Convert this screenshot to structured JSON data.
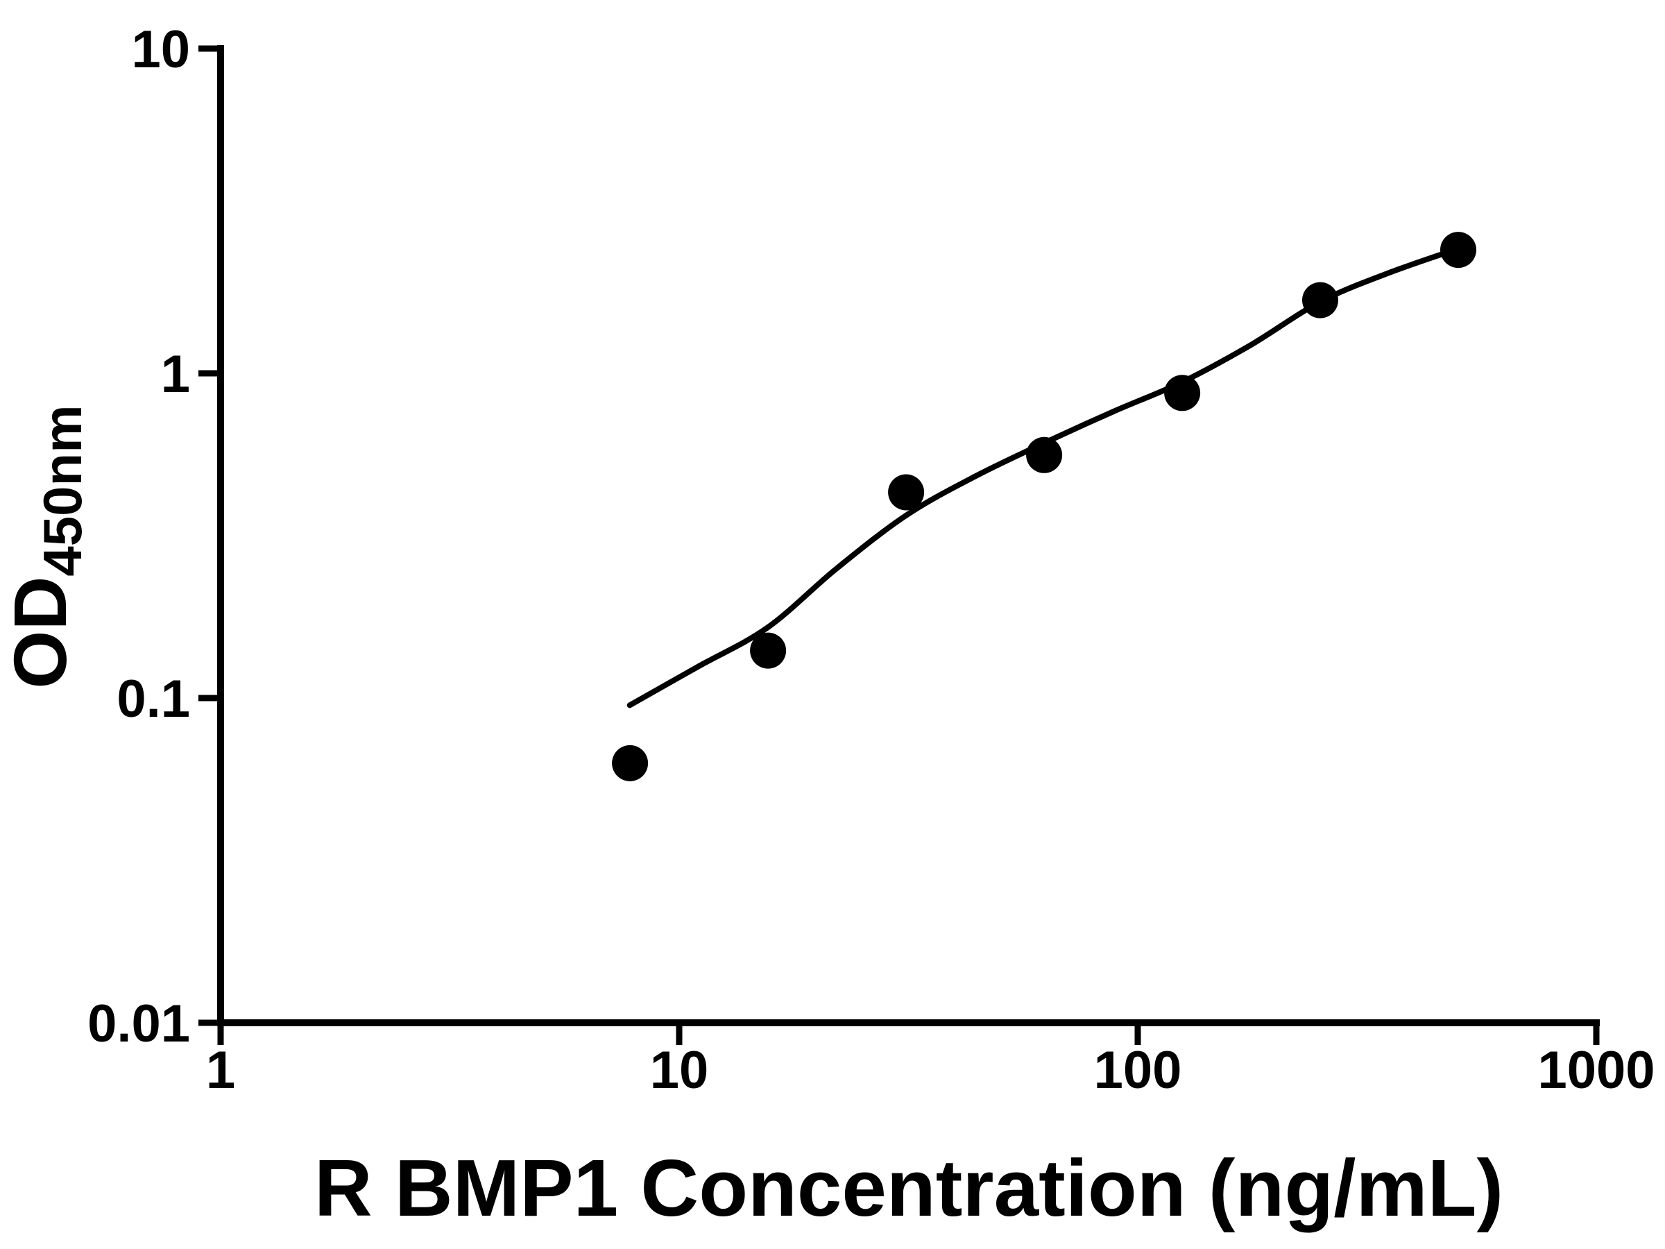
{
  "chart_data": {
    "type": "scatter",
    "title": "",
    "xlabel": "R BMP1 Concentration (ng/mL)",
    "ylabel_main": "OD",
    "ylabel_subscript": "450nm",
    "x_scale": "log10",
    "y_scale": "log10",
    "xlim": [
      1,
      1000
    ],
    "ylim": [
      0.01,
      10
    ],
    "x_tick_values": [
      1,
      10,
      100,
      1000
    ],
    "x_tick_labels": [
      "1",
      "10",
      "100",
      "1000"
    ],
    "y_tick_values": [
      0.01,
      0.1,
      1,
      10
    ],
    "y_tick_labels": [
      "0.01",
      "0.1",
      "1",
      "10"
    ],
    "grid": false,
    "legend": "none",
    "axis_color": "#000000",
    "series": [
      {
        "name": "standards",
        "type": "scatter",
        "marker": "filled-circle",
        "color": "#000000",
        "points": [
          {
            "x": 7.8125,
            "y": 0.063
          },
          {
            "x": 15.625,
            "y": 0.14
          },
          {
            "x": 31.25,
            "y": 0.43
          },
          {
            "x": 62.5,
            "y": 0.56
          },
          {
            "x": 125,
            "y": 0.87
          },
          {
            "x": 250,
            "y": 1.68
          },
          {
            "x": 500,
            "y": 2.4
          }
        ]
      },
      {
        "name": "fit-curve",
        "type": "line",
        "color": "#000000",
        "points": [
          {
            "x": 7.8,
            "y": 0.095
          },
          {
            "x": 11.0,
            "y": 0.125
          },
          {
            "x": 15.6,
            "y": 0.165
          },
          {
            "x": 22,
            "y": 0.25
          },
          {
            "x": 31.25,
            "y": 0.365
          },
          {
            "x": 44,
            "y": 0.48
          },
          {
            "x": 62.5,
            "y": 0.61
          },
          {
            "x": 88,
            "y": 0.76
          },
          {
            "x": 125,
            "y": 0.94
          },
          {
            "x": 176,
            "y": 1.22
          },
          {
            "x": 250,
            "y": 1.66
          },
          {
            "x": 350,
            "y": 2.03
          },
          {
            "x": 500,
            "y": 2.42
          }
        ]
      }
    ]
  }
}
